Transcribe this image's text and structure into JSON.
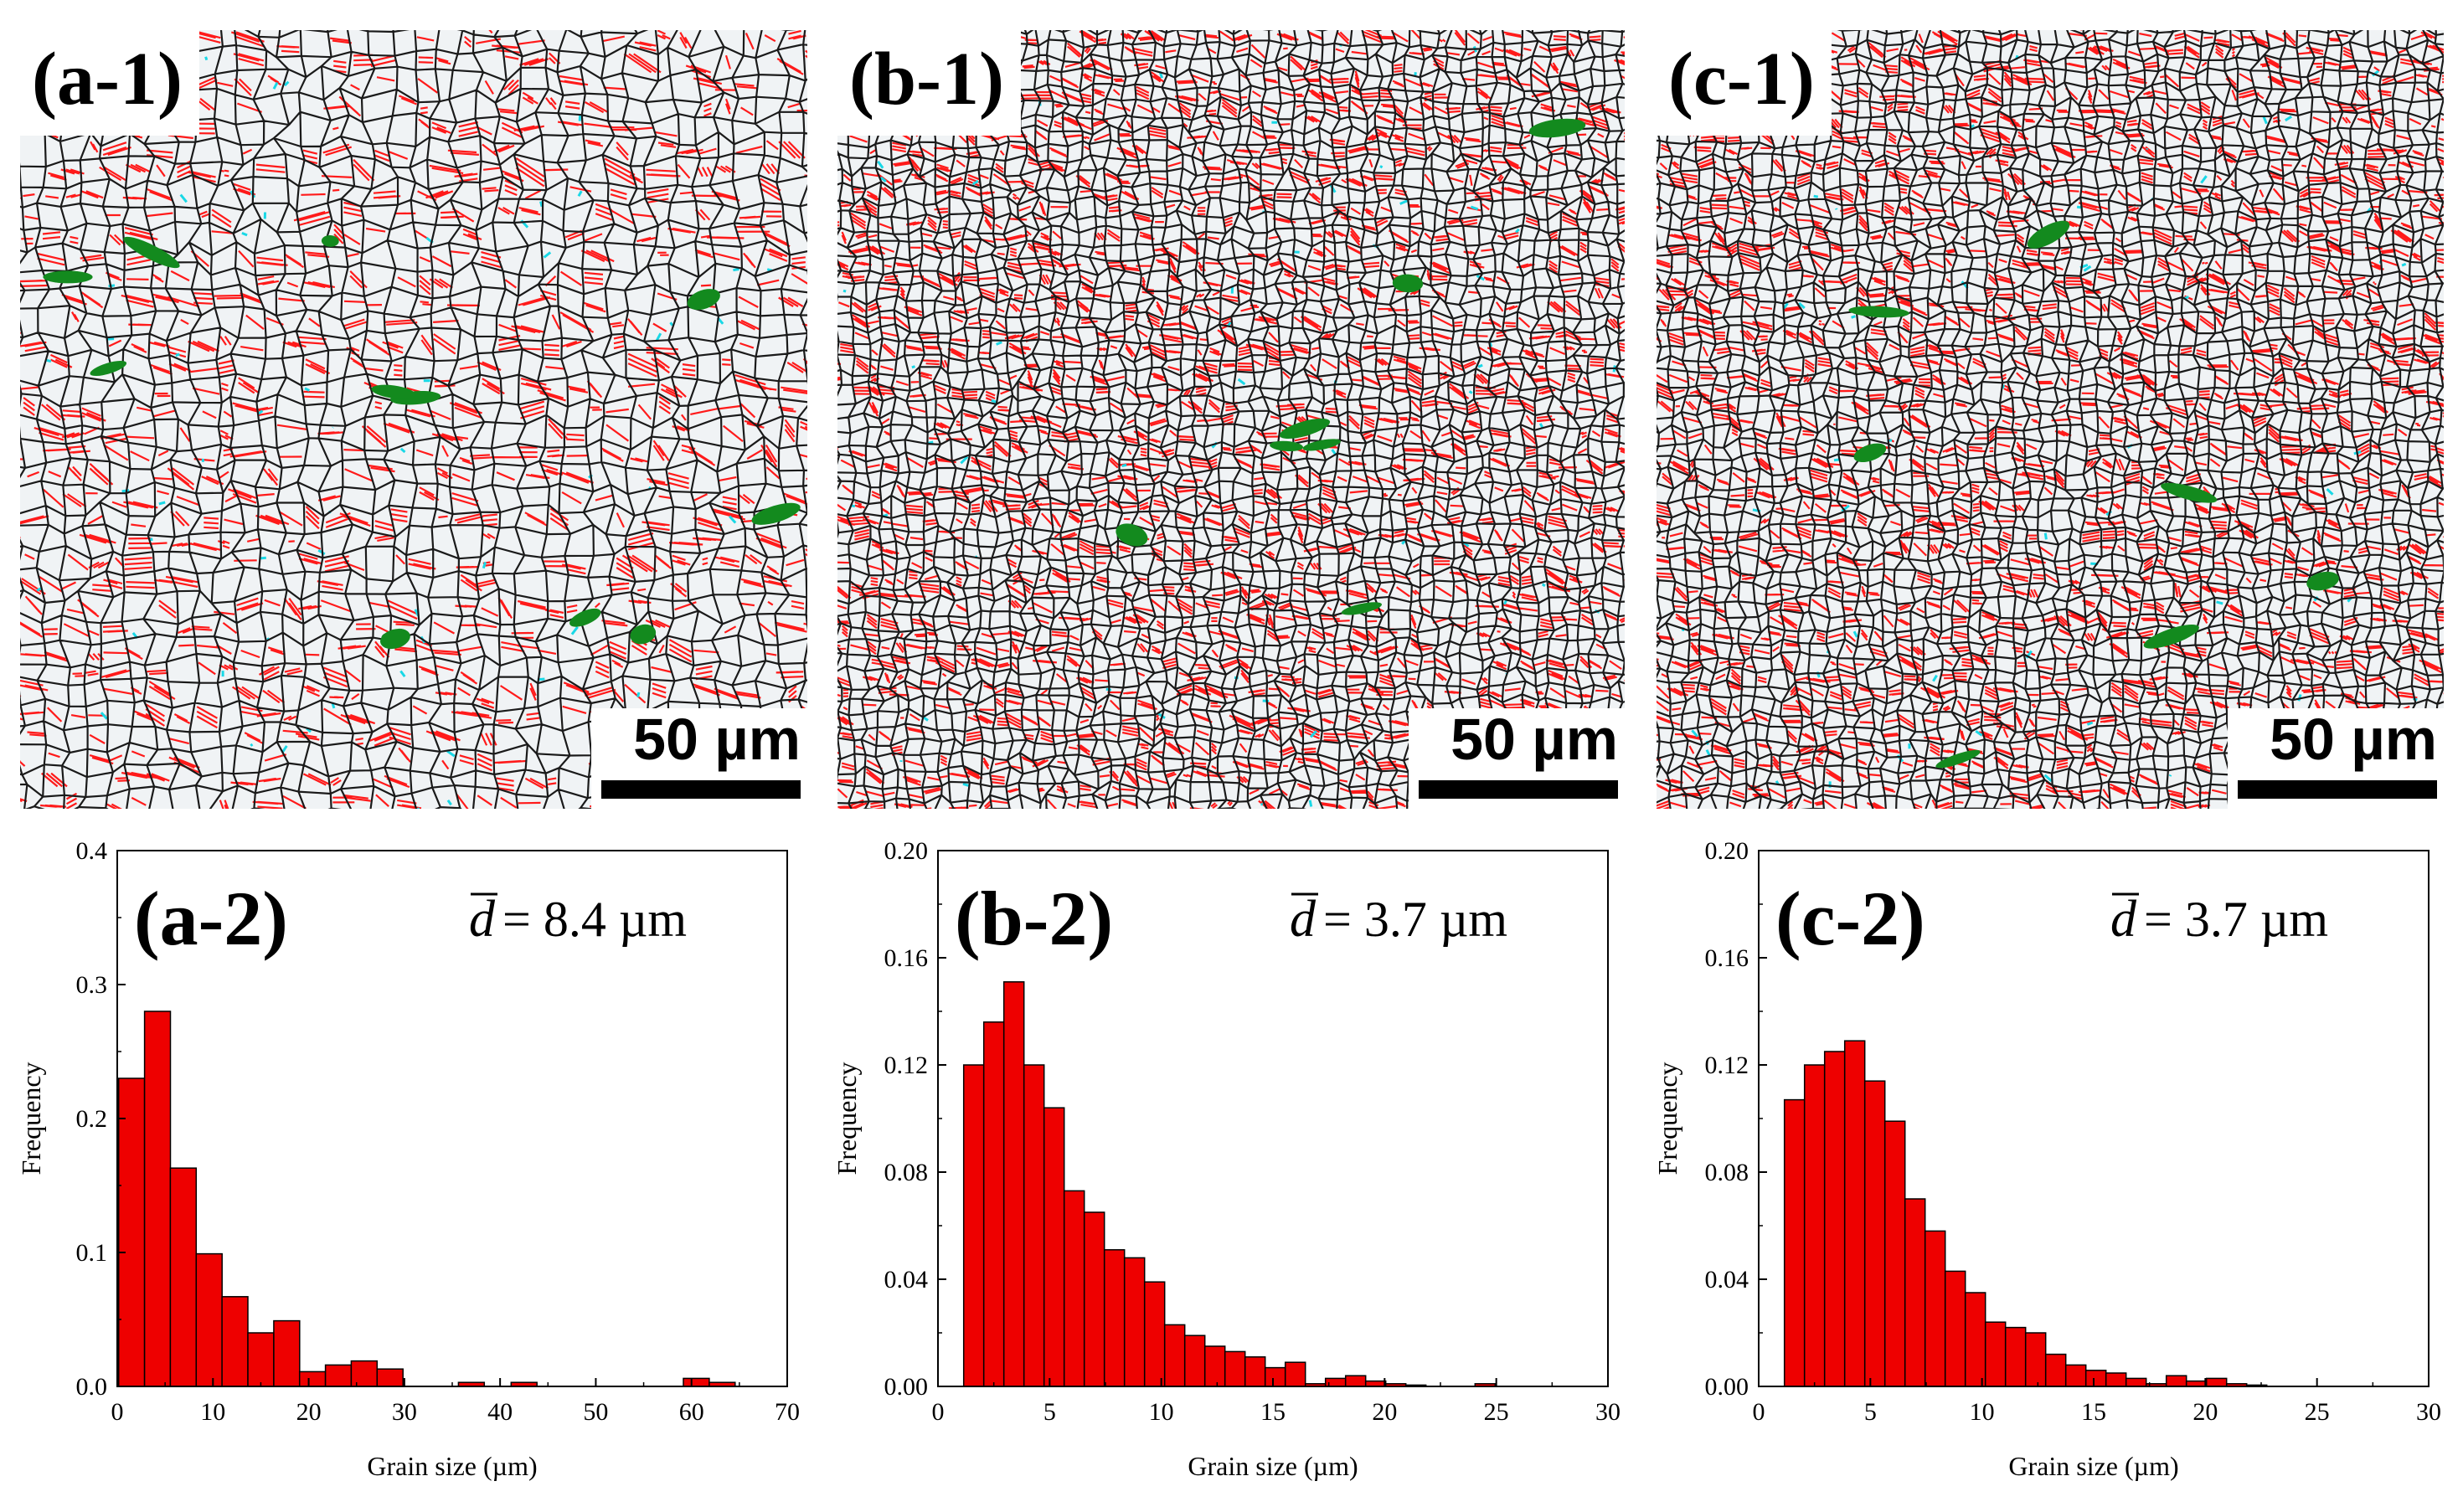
{
  "micrographs": [
    {
      "label": "(a-1)",
      "scale_text": "50 µm"
    },
    {
      "label": "(b-1)",
      "scale_text": "50 µm"
    },
    {
      "label": "(c-1)",
      "scale_text": "50 µm"
    }
  ],
  "chart_data": [
    {
      "type": "bar",
      "panel_label": "(a-2)",
      "annotation_symbol": "d",
      "annotation_value": "= 8.4 µm",
      "xlabel": "Grain size (µm)",
      "ylabel": "Frequency",
      "xlim": [
        0,
        70
      ],
      "ylim": [
        0,
        0.4
      ],
      "xticks": [
        0,
        10,
        20,
        30,
        40,
        50,
        60,
        70
      ],
      "yticks": [
        0.0,
        0.1,
        0.2,
        0.3,
        0.4
      ],
      "ytick_labels": [
        "0.0",
        "0.1",
        "0.2",
        "0.3",
        "0.4"
      ],
      "bin_width": 2.7,
      "bin_centers": [
        1.5,
        4.2,
        6.9,
        9.6,
        12.3,
        15.0,
        17.7,
        20.4,
        23.1,
        25.8,
        28.5,
        37.0,
        42.5,
        60.5,
        63.2
      ],
      "values": [
        0.23,
        0.28,
        0.163,
        0.099,
        0.067,
        0.04,
        0.049,
        0.011,
        0.016,
        0.019,
        0.013,
        0.003,
        0.003,
        0.006,
        0.003
      ]
    },
    {
      "type": "bar",
      "panel_label": "(b-2)",
      "annotation_symbol": "d",
      "annotation_value": "= 3.7 µm",
      "xlabel": "Grain size (µm)",
      "ylabel": "Frequency",
      "xlim": [
        0,
        30
      ],
      "ylim": [
        0,
        0.2
      ],
      "xticks": [
        0,
        5,
        10,
        15,
        20,
        25,
        30
      ],
      "yticks": [
        0.0,
        0.04,
        0.08,
        0.12,
        0.16,
        0.2
      ],
      "ytick_labels": [
        "0.00",
        "0.04",
        "0.08",
        "0.12",
        "0.16",
        "0.20"
      ],
      "bin_width": 0.9,
      "bin_centers": [
        1.6,
        2.5,
        3.4,
        4.3,
        5.2,
        6.1,
        7.0,
        7.9,
        8.8,
        9.7,
        10.6,
        11.5,
        12.4,
        13.3,
        14.2,
        15.1,
        16.0,
        16.9,
        17.8,
        18.7,
        19.6,
        20.5,
        21.4,
        24.5
      ],
      "values": [
        0.12,
        0.136,
        0.151,
        0.12,
        0.104,
        0.073,
        0.065,
        0.051,
        0.048,
        0.039,
        0.023,
        0.019,
        0.015,
        0.013,
        0.011,
        0.007,
        0.009,
        0.001,
        0.003,
        0.004,
        0.002,
        0.001,
        0.0005,
        0.001
      ]
    },
    {
      "type": "bar",
      "panel_label": "(c-2)",
      "annotation_symbol": "d",
      "annotation_value": "= 3.7 µm",
      "xlabel": "Grain size  (µm)",
      "ylabel": "Frequency",
      "xlim": [
        0,
        30
      ],
      "ylim": [
        0,
        0.2
      ],
      "xticks": [
        0,
        5,
        10,
        15,
        20,
        25,
        30
      ],
      "yticks": [
        0.0,
        0.04,
        0.08,
        0.12,
        0.16,
        0.2
      ],
      "ytick_labels": [
        "0.00",
        "0.04",
        "0.08",
        "0.12",
        "0.16",
        "0.20"
      ],
      "bin_width": 0.9,
      "bin_centers": [
        1.6,
        2.5,
        3.4,
        4.3,
        5.2,
        6.1,
        7.0,
        7.9,
        8.8,
        9.7,
        10.6,
        11.5,
        12.4,
        13.3,
        14.2,
        15.1,
        16.0,
        16.9,
        17.8,
        18.7,
        19.6,
        20.5,
        21.4,
        22.3
      ],
      "values": [
        0.107,
        0.12,
        0.125,
        0.129,
        0.114,
        0.099,
        0.07,
        0.058,
        0.043,
        0.035,
        0.024,
        0.022,
        0.02,
        0.012,
        0.008,
        0.006,
        0.005,
        0.003,
        0.001,
        0.004,
        0.002,
        0.003,
        0.001,
        0.0005
      ]
    }
  ]
}
